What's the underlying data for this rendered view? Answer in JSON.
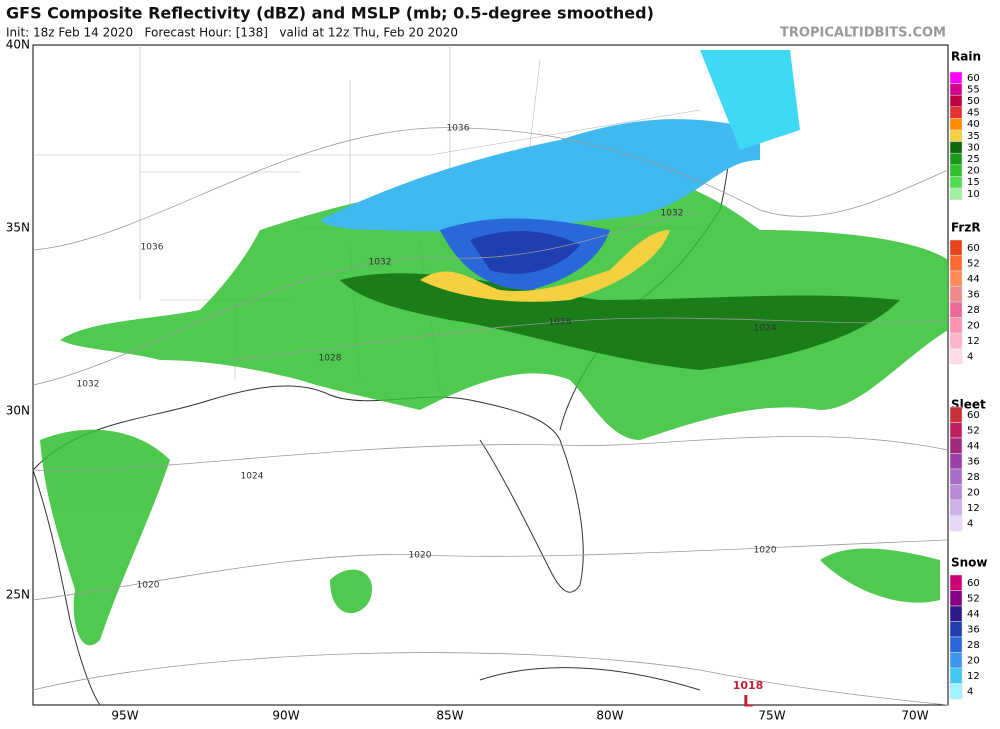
{
  "header": {
    "title": "GFS Composite Reflectivity (dBZ) and MSLP (mb; 0.5-degree smoothed)",
    "subtitle": "Init: 18z Feb 14 2020   Forecast Hour: [138]   valid at 12z Thu, Feb 20 2020",
    "watermark": "TROPICALTIDBITS.COM"
  },
  "map": {
    "lat_labels": [
      "40N",
      "35N",
      "30N",
      "25N"
    ],
    "lon_labels": [
      "95W",
      "90W",
      "85W",
      "80W",
      "75W",
      "70W"
    ],
    "isobar_labels": [
      "1036",
      "1036",
      "1032",
      "1032",
      "1032",
      "1028",
      "1028",
      "1024",
      "1024",
      "1020",
      "1020",
      "1020"
    ],
    "low": {
      "pressure": "1018",
      "symbol": "L"
    }
  },
  "legend": [
    {
      "title": "Rain",
      "labels": [
        "60",
        "55",
        "50",
        "45",
        "40",
        "35",
        "30",
        "25",
        "20",
        "15",
        "10"
      ],
      "colors": [
        "#ff00ff",
        "#d4008f",
        "#c00040",
        "#e83030",
        "#ff8a00",
        "#f5d040",
        "#0c6a0c",
        "#1a9a1a",
        "#30c030",
        "#50dc50",
        "#9ff09f"
      ]
    },
    {
      "title": "FrzR",
      "labels": [
        "60",
        "52",
        "44",
        "36",
        "28",
        "20",
        "12",
        "4"
      ],
      "colors": [
        "#e8431a",
        "#ff6a30",
        "#ff8a5a",
        "#f08a8a",
        "#e86b9a",
        "#ff92b2",
        "#ffb4cc",
        "#ffdde8"
      ]
    },
    {
      "title": "Sleet",
      "labels": [
        "60",
        "52",
        "44",
        "36",
        "28",
        "20",
        "12",
        "4"
      ],
      "colors": [
        "#c8303a",
        "#c02060",
        "#a3287f",
        "#9c3fa8",
        "#a86bc8",
        "#bb8ad8",
        "#d0b0ea",
        "#e8d8f8"
      ]
    },
    {
      "title": "Snow",
      "labels": [
        "60",
        "52",
        "44",
        "36",
        "28",
        "20",
        "12",
        "4"
      ],
      "colors": [
        "#cc0077",
        "#880088",
        "#2c1a8c",
        "#1f3fb0",
        "#2868d8",
        "#3a98f0",
        "#3fc8f0",
        "#a0f4ff"
      ]
    }
  ]
}
